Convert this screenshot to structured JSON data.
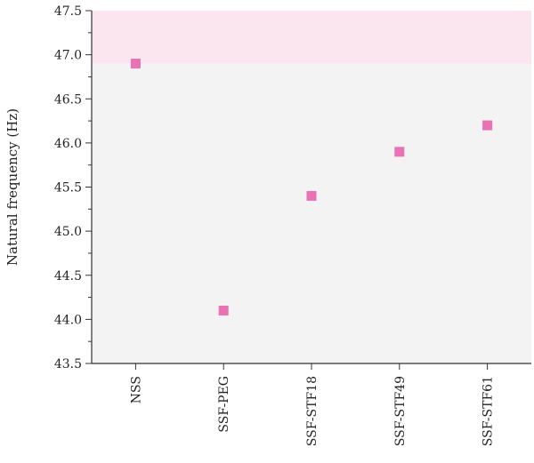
{
  "chart_data": {
    "type": "scatter",
    "title": "",
    "xlabel": "",
    "ylabel": "Natural frequency (Hz)",
    "categories": [
      "NSS",
      "SSF-PEG",
      "SSF-STF18",
      "SSF-STF49",
      "SSF-STF61"
    ],
    "values": [
      46.9,
      44.1,
      45.4,
      45.9,
      46.2
    ],
    "ylim": [
      43.5,
      47.5
    ],
    "yticks": [
      "43.5",
      "44.0",
      "44.5",
      "45.0",
      "45.5",
      "46.0",
      "46.5",
      "47.0",
      "47.5"
    ],
    "highlight_band": [
      46.9,
      47.5
    ],
    "grid": false,
    "legend": "none"
  },
  "colors": {
    "marker": "#e872b3",
    "plot_background": "#f3f3f3",
    "highlight_band": "#fbe6f0",
    "axis": "#333333"
  }
}
